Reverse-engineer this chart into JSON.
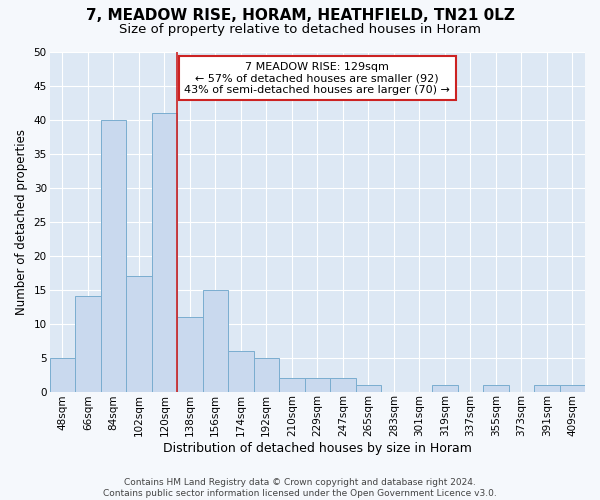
{
  "title": "7, MEADOW RISE, HORAM, HEATHFIELD, TN21 0LZ",
  "subtitle": "Size of property relative to detached houses in Horam",
  "xlabel": "Distribution of detached houses by size in Horam",
  "ylabel": "Number of detached properties",
  "categories": [
    "48sqm",
    "66sqm",
    "84sqm",
    "102sqm",
    "120sqm",
    "138sqm",
    "156sqm",
    "174sqm",
    "192sqm",
    "210sqm",
    "229sqm",
    "247sqm",
    "265sqm",
    "283sqm",
    "301sqm",
    "319sqm",
    "337sqm",
    "355sqm",
    "373sqm",
    "391sqm",
    "409sqm"
  ],
  "values": [
    5,
    14,
    40,
    17,
    41,
    11,
    15,
    6,
    5,
    2,
    2,
    2,
    1,
    0,
    0,
    1,
    0,
    1,
    0,
    1,
    1
  ],
  "bar_color": "#c9d9ee",
  "bar_edge_color": "#7aadcf",
  "plot_bg_color": "#dde8f4",
  "fig_bg_color": "#f5f8fc",
  "grid_color": "#ffffff",
  "red_line_color": "#cc2222",
  "property_line_index": 4.5,
  "ylim": [
    0,
    50
  ],
  "yticks": [
    0,
    5,
    10,
    15,
    20,
    25,
    30,
    35,
    40,
    45,
    50
  ],
  "annotation_text": "7 MEADOW RISE: 129sqm\n← 57% of detached houses are smaller (92)\n43% of semi-detached houses are larger (70) →",
  "annotation_box_facecolor": "#ffffff",
  "annotation_box_edgecolor": "#cc2222",
  "footer_text": "Contains HM Land Registry data © Crown copyright and database right 2024.\nContains public sector information licensed under the Open Government Licence v3.0.",
  "title_fontsize": 11,
  "subtitle_fontsize": 9.5,
  "xlabel_fontsize": 9,
  "ylabel_fontsize": 8.5,
  "tick_fontsize": 7.5,
  "annotation_fontsize": 8,
  "footer_fontsize": 6.5
}
